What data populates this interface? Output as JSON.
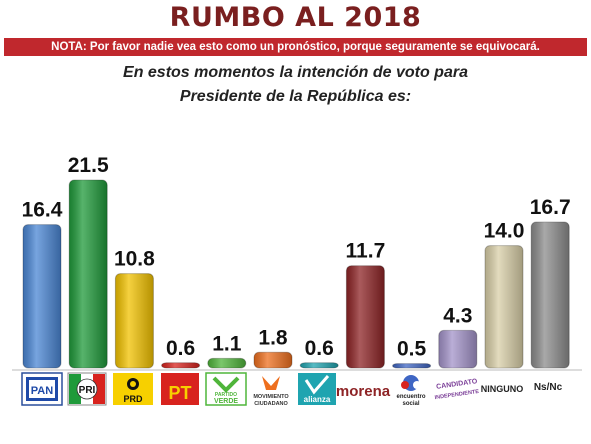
{
  "header": {
    "title": "RUMBO AL 2018",
    "note": "NOTA: Por favor nadie vea esto como un pronóstico, porque seguramente se equivocará.",
    "subtitle_line1": "En estos momentos la intención de voto para",
    "subtitle_line2": "Presidente de la República es:"
  },
  "chart_data": {
    "type": "bar",
    "title": "RUMBO AL 2018",
    "categories": [
      "PAN",
      "PRI",
      "PRD",
      "PT",
      "PARTIDO VERDE",
      "MOVIMIENTO CIUDADANO",
      "alianza",
      "morena",
      "encuentro social",
      "CANDIDATO INDEPENDIENTE",
      "NINGUNO",
      "Ns/Nc"
    ],
    "values": [
      16.4,
      21.5,
      10.8,
      0.6,
      1.1,
      1.8,
      0.6,
      11.7,
      0.5,
      4.3,
      14.0,
      16.7
    ],
    "value_labels": [
      "16.4",
      "21.5",
      "10.8",
      "0.6",
      "1.1",
      "1.8",
      "0.6",
      "11.7",
      "0.5",
      "4.3",
      "14.0",
      "16.7"
    ],
    "colors": [
      "#4a86d4",
      "#1f9a3a",
      "#f2c200",
      "#d8231e",
      "#4fb53a",
      "#ee6f1e",
      "#1fa4b0",
      "#8e2426",
      "#3f66c4",
      "#a393c9",
      "#d9cfa8",
      "#8c8c8c"
    ],
    "ylim": [
      0,
      22.5
    ],
    "grid": false,
    "legend": "none",
    "xlabel": "",
    "ylabel": ""
  },
  "logos": {
    "pan": "PAN",
    "pri": "PRI",
    "prd": "PRD",
    "pt": "PT",
    "verde": "VERDE",
    "verde_small": "PARTIDO",
    "mc_1": "MOVIMIENTO",
    "mc_2": "CIUDADANO",
    "alianza": "alianza",
    "morena": "morena",
    "encuentro_1": "encuentro",
    "encuentro_2": "social",
    "indep_1": "CANDIDATO",
    "indep_2": "INDEPENDIENTE",
    "ninguno": "NINGUNO",
    "nsnc": "Ns/Nc"
  }
}
